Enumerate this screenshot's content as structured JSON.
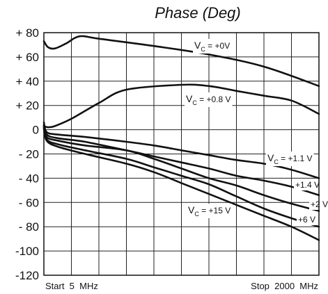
{
  "chart_data": {
    "type": "line",
    "title": "Phase (Deg)",
    "xlabel": "",
    "ylabel": "",
    "x_start_label": "Start  5  MHz",
    "x_stop_label": "Stop  2000  MHz",
    "xlim": [
      0,
      10
    ],
    "ylim": [
      -120,
      80
    ],
    "yticks": [
      {
        "value": 80,
        "label": "+ 80"
      },
      {
        "value": 60,
        "label": "+ 60"
      },
      {
        "value": 40,
        "label": "+ 40"
      },
      {
        "value": 20,
        "label": "+ 20"
      },
      {
        "value": 0,
        "label": "0"
      },
      {
        "value": -20,
        "label": "- 20"
      },
      {
        "value": -40,
        "label": "- 40"
      },
      {
        "value": -60,
        "label": "- 60"
      },
      {
        "value": -80,
        "label": "- 80"
      },
      {
        "value": -100,
        "label": "-100"
      },
      {
        "value": -120,
        "label": "-120"
      }
    ],
    "x_divisions": 10,
    "grid": true,
    "series": [
      {
        "name": "Vc = +0V",
        "label_sub": "C",
        "label_pre": "V",
        "label_post": " = +0V",
        "x": [
          0,
          0.15,
          0.4,
          0.8,
          1.3,
          2,
          4,
          6,
          8,
          10
        ],
        "y": [
          73,
          68,
          67,
          71,
          77,
          75,
          69,
          62,
          52,
          36
        ]
      },
      {
        "name": "Vc = +0.8 V",
        "label_sub": "C",
        "label_pre": "V",
        "label_post": " = +0.8 V",
        "x": [
          0,
          0.15,
          0.4,
          1,
          2,
          3,
          5,
          6,
          7,
          8,
          9,
          10
        ],
        "y": [
          3,
          2,
          3,
          9,
          22,
          33,
          37,
          36,
          32,
          28,
          24,
          13
        ]
      },
      {
        "name": "Vc = +1.1 V",
        "label_sub": "C",
        "label_pre": "V",
        "label_post": " = +1.1 V",
        "x": [
          0,
          0.1,
          0.5,
          1.5,
          3,
          4,
          5,
          6,
          7,
          8,
          9,
          10
        ],
        "y": [
          6,
          -2,
          -4,
          -6,
          -10,
          -13,
          -17,
          -21,
          -25,
          -28,
          -33,
          -40
        ]
      },
      {
        "name": "+1.4 V",
        "label_sub": "",
        "label_pre": "",
        "label_post": "+1.4 V",
        "x": [
          0,
          0.1,
          0.5,
          1.5,
          3,
          4,
          5,
          6,
          7,
          8,
          9,
          10
        ],
        "y": [
          4,
          -4,
          -7,
          -10,
          -17,
          -22,
          -27,
          -32,
          -38,
          -42,
          -47,
          -54
        ]
      },
      {
        "name": "+2 V",
        "label_sub": "",
        "label_pre": "",
        "label_post": "+2 V",
        "x": [
          0,
          0.1,
          0.5,
          1.5,
          3,
          4,
          5,
          6,
          7,
          8,
          9,
          10
        ],
        "y": [
          3,
          -6,
          -9,
          -13,
          -17,
          -24,
          -32,
          -40,
          -46,
          -54,
          -61,
          -67
        ]
      },
      {
        "name": "+6 V",
        "label_sub": "",
        "label_pre": "",
        "label_post": "+6 V",
        "x": [
          0,
          0.1,
          0.5,
          1.5,
          3,
          4,
          5,
          6,
          7,
          8,
          9,
          10
        ],
        "y": [
          2,
          -8,
          -12,
          -17,
          -24,
          -31,
          -38,
          -45,
          -55,
          -65,
          -73,
          -80
        ]
      },
      {
        "name": "Vc = +15 V",
        "label_sub": "C",
        "label_pre": "V",
        "label_post": " = +15 V",
        "x": [
          0,
          0.1,
          0.5,
          1.5,
          3,
          4,
          5,
          6,
          7,
          8,
          9,
          10
        ],
        "y": [
          1,
          -9,
          -14,
          -20,
          -28,
          -35,
          -44,
          -53,
          -62,
          -71,
          -80,
          -91
        ]
      }
    ]
  }
}
